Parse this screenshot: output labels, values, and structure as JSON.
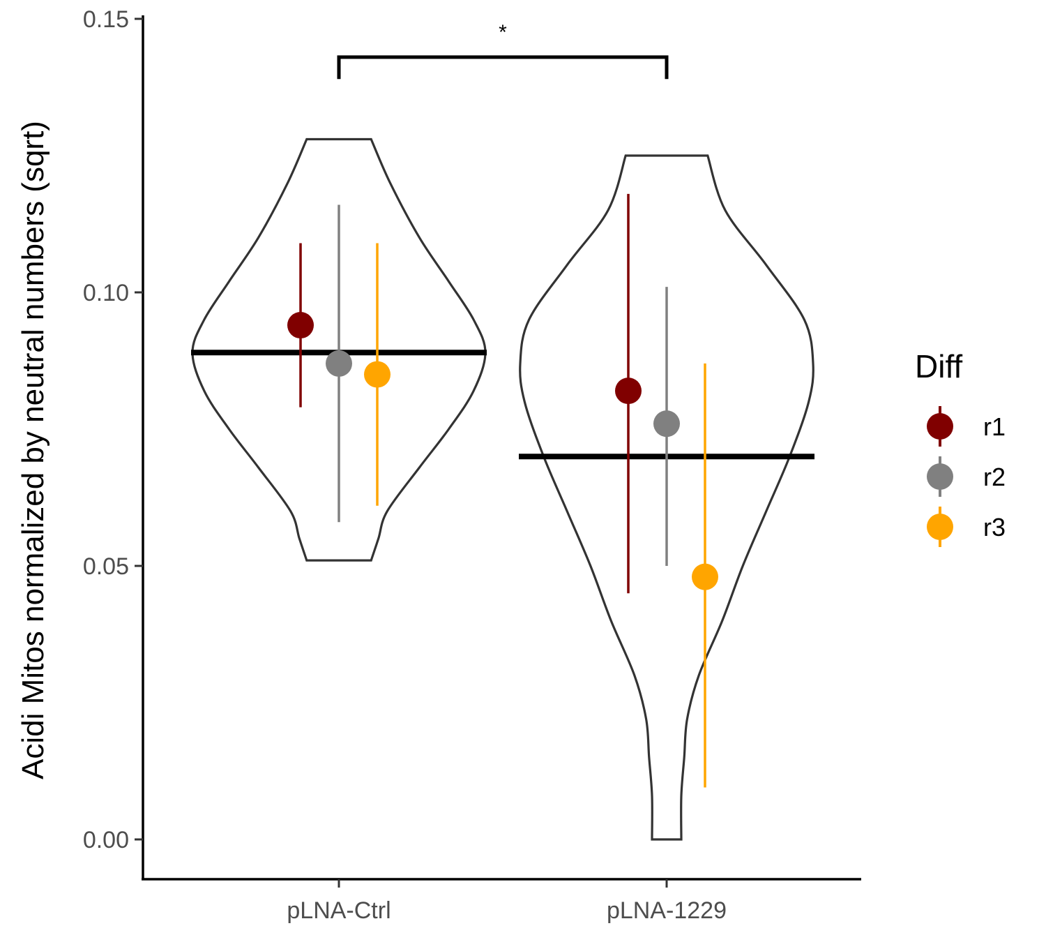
{
  "chart_data": {
    "type": "violin",
    "ylabel": "Acidi Mitos normalized by neutral numbers (sqrt)",
    "xlabel": "",
    "ylim": [
      -0.0075,
      0.15
    ],
    "yticks": [
      "0.00",
      "0.05",
      "0.10",
      "0.15"
    ],
    "ytick_values": [
      0.0,
      0.05,
      0.1,
      0.15
    ],
    "categories": [
      "pLNA-Ctrl",
      "pLNA-1229"
    ],
    "legend": {
      "title": "Diff",
      "position": "right",
      "entries": [
        "r1",
        "r2",
        "r3"
      ]
    },
    "colors": {
      "r1": "#800000",
      "r2": "#808080",
      "r3": "#FFA500"
    },
    "group_means": [
      0.089,
      0.07
    ],
    "violins": [
      {
        "category": "pLNA-Ctrl",
        "ymin": 0.051,
        "ymax": 0.128,
        "profile": [
          {
            "y": 0.051,
            "w": 0.22
          },
          {
            "y": 0.055,
            "w": 0.27
          },
          {
            "y": 0.06,
            "w": 0.33
          },
          {
            "y": 0.068,
            "w": 0.55
          },
          {
            "y": 0.075,
            "w": 0.75
          },
          {
            "y": 0.082,
            "w": 0.92
          },
          {
            "y": 0.089,
            "w": 1.0
          },
          {
            "y": 0.095,
            "w": 0.92
          },
          {
            "y": 0.102,
            "w": 0.75
          },
          {
            "y": 0.11,
            "w": 0.55
          },
          {
            "y": 0.12,
            "w": 0.35
          },
          {
            "y": 0.128,
            "w": 0.22
          }
        ]
      },
      {
        "category": "pLNA-1229",
        "ymin": 0.0,
        "ymax": 0.125,
        "profile": [
          {
            "y": 0.0,
            "w": 0.1
          },
          {
            "y": 0.008,
            "w": 0.1
          },
          {
            "y": 0.015,
            "w": 0.12
          },
          {
            "y": 0.022,
            "w": 0.14
          },
          {
            "y": 0.03,
            "w": 0.22
          },
          {
            "y": 0.04,
            "w": 0.38
          },
          {
            "y": 0.05,
            "w": 0.52
          },
          {
            "y": 0.06,
            "w": 0.68
          },
          {
            "y": 0.07,
            "w": 0.84
          },
          {
            "y": 0.08,
            "w": 0.97
          },
          {
            "y": 0.087,
            "w": 1.0
          },
          {
            "y": 0.095,
            "w": 0.94
          },
          {
            "y": 0.105,
            "w": 0.68
          },
          {
            "y": 0.115,
            "w": 0.4
          },
          {
            "y": 0.125,
            "w": 0.28
          }
        ]
      }
    ],
    "series": [
      {
        "name": "r1",
        "points": [
          {
            "category": "pLNA-Ctrl",
            "mean": 0.094,
            "low": 0.079,
            "high": 0.109
          },
          {
            "category": "pLNA-1229",
            "mean": 0.082,
            "low": 0.045,
            "high": 0.118
          }
        ]
      },
      {
        "name": "r2",
        "points": [
          {
            "category": "pLNA-Ctrl",
            "mean": 0.087,
            "low": 0.058,
            "high": 0.116
          },
          {
            "category": "pLNA-1229",
            "mean": 0.076,
            "low": 0.05,
            "high": 0.101
          }
        ]
      },
      {
        "name": "r3",
        "points": [
          {
            "category": "pLNA-Ctrl",
            "mean": 0.085,
            "low": 0.061,
            "high": 0.109
          },
          {
            "category": "pLNA-1229",
            "mean": 0.048,
            "low": 0.0095,
            "high": 0.087
          }
        ]
      }
    ],
    "significance": {
      "from": "pLNA-Ctrl",
      "to": "pLNA-1229",
      "label": "*",
      "y": 0.143,
      "tip_bottom": 0.139
    }
  }
}
